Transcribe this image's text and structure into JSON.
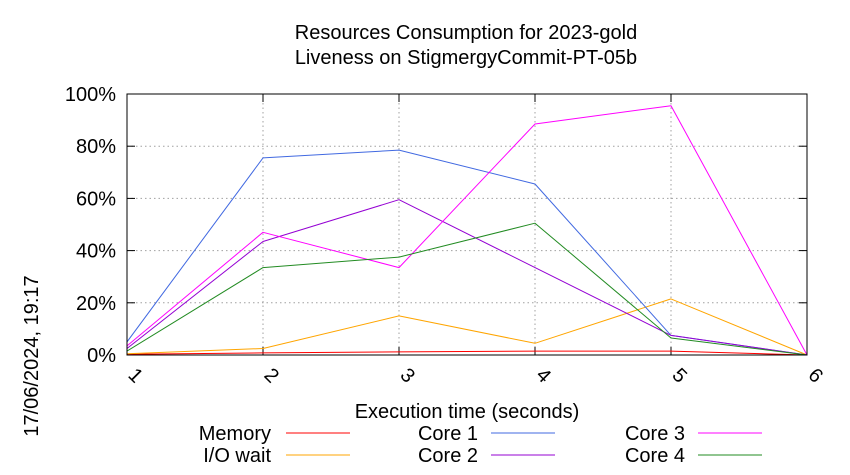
{
  "side_label": "17/06/2024, 19:17",
  "chart_data": {
    "type": "line",
    "title": "Resources Consumption for 2023-gold",
    "subtitle": "Liveness on StigmergyCommit-PT-05b",
    "xlabel": "Execution time (seconds)",
    "ylabel": "",
    "x": [
      1,
      2,
      3,
      4,
      5,
      6
    ],
    "xlim": [
      1,
      6
    ],
    "ylim": [
      0,
      100
    ],
    "yticks": [
      0,
      20,
      40,
      60,
      80,
      100
    ],
    "ytick_labels": [
      "0%",
      "20%",
      "40%",
      "60%",
      "80%",
      "100%"
    ],
    "xtick_labels": [
      "1",
      "2",
      "3",
      "4",
      "5",
      "6"
    ],
    "grid": true,
    "legend_position": "bottom",
    "series": [
      {
        "name": "Memory",
        "color": "#ff0000",
        "values": [
          0.3,
          0.8,
          1.2,
          1.5,
          1.5,
          0
        ]
      },
      {
        "name": "I/O wait",
        "color": "#ffa500",
        "values": [
          0.5,
          2.5,
          15,
          4.5,
          21.5,
          0
        ]
      },
      {
        "name": "Core 1",
        "color": "#4169e1",
        "values": [
          5,
          75.5,
          78.5,
          65.5,
          7.5,
          0
        ]
      },
      {
        "name": "Core 2",
        "color": "#9400d3",
        "values": [
          2.5,
          43.5,
          59.5,
          33.5,
          7.5,
          0
        ]
      },
      {
        "name": "Core 3",
        "color": "#ff00ff",
        "values": [
          3.5,
          47,
          33.5,
          88.5,
          95.5,
          0
        ]
      },
      {
        "name": "Core 4",
        "color": "#228b22",
        "values": [
          1.5,
          33.5,
          37.5,
          50.5,
          6.5,
          0
        ]
      }
    ]
  }
}
